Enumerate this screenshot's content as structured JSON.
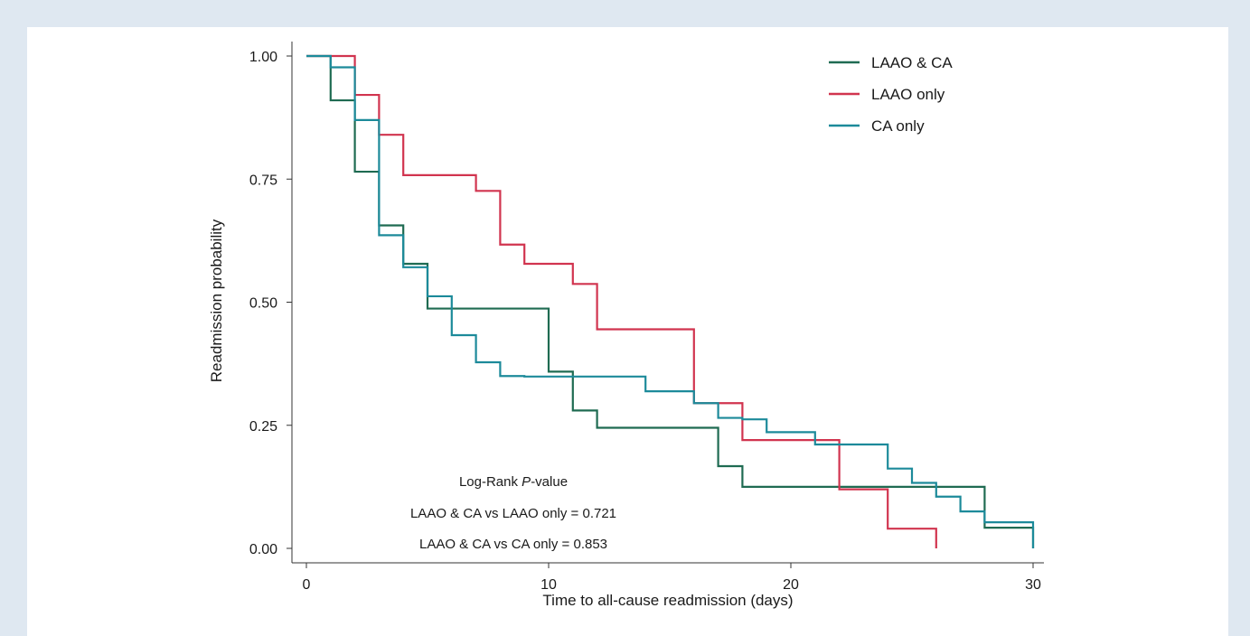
{
  "chart_data": {
    "type": "line",
    "subtype": "kaplan-meier step",
    "xlabel": "Time to all-cause readmission (days)",
    "ylabel": "Readmission probability",
    "xlim": [
      0,
      30
    ],
    "ylim": [
      0,
      1
    ],
    "xticks": [
      0,
      10,
      20,
      30
    ],
    "yticks": [
      0,
      0.25,
      0.5,
      0.75,
      1.0
    ],
    "xtick_labels": [
      "0",
      "10",
      "20",
      "30"
    ],
    "ytick_labels": [
      "0.00",
      "0.25",
      "0.50",
      "0.75",
      "1.00"
    ],
    "grid": false,
    "legend_position": "top-right",
    "series": [
      {
        "name": "LAAO & CA",
        "color": "#1f6b52",
        "x": [
          0,
          1,
          2,
          3,
          4,
          5,
          10,
          11,
          12,
          17,
          18,
          28,
          30,
          30
        ],
        "y": [
          1.0,
          0.91,
          0.765,
          0.656,
          0.578,
          0.487,
          0.359,
          0.28,
          0.245,
          0.167,
          0.125,
          0.042,
          0.042,
          0.0
        ]
      },
      {
        "name": "LAAO only",
        "color": "#d1344f",
        "x": [
          0,
          2,
          3,
          4,
          7,
          8,
          9,
          11,
          12,
          16,
          18,
          22,
          24,
          26,
          26
        ],
        "y": [
          1.0,
          0.921,
          0.84,
          0.758,
          0.726,
          0.617,
          0.578,
          0.537,
          0.445,
          0.295,
          0.22,
          0.12,
          0.04,
          0.04,
          0.0
        ]
      },
      {
        "name": "CA only",
        "color": "#1c8a9a",
        "x": [
          0,
          1,
          2,
          3,
          4,
          5,
          6,
          7,
          8,
          9,
          14,
          16,
          17,
          18,
          19,
          21,
          24,
          25,
          26,
          27,
          28,
          30,
          30
        ],
        "y": [
          1.0,
          0.977,
          0.87,
          0.636,
          0.571,
          0.512,
          0.433,
          0.378,
          0.35,
          0.349,
          0.319,
          0.295,
          0.265,
          0.262,
          0.236,
          0.211,
          0.162,
          0.133,
          0.105,
          0.075,
          0.053,
          0.053,
          0.0
        ]
      }
    ],
    "annotation": {
      "title_prefix": "Log-Rank ",
      "title_italic": "P",
      "title_suffix": "-value",
      "lines": [
        "LAAO & CA vs LAAO only = 0.721",
        "LAAO & CA vs CA only = 0.853"
      ]
    }
  }
}
